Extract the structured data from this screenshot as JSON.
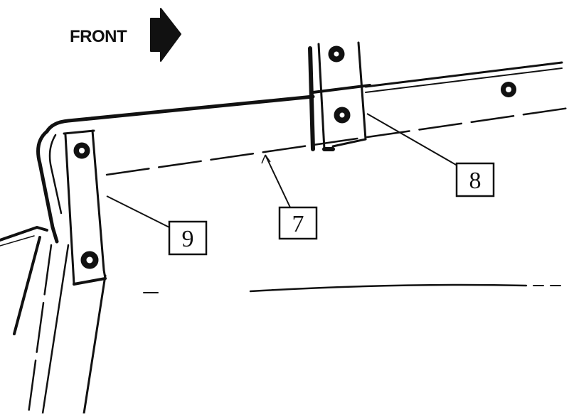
{
  "direction": {
    "label": "FRONT",
    "arrow_icon": "right-arrow-icon"
  },
  "callouts": {
    "part_7": "7",
    "part_8": "8",
    "part_9": "9"
  },
  "colors": {
    "ink": "#111111",
    "background": "#ffffff"
  }
}
